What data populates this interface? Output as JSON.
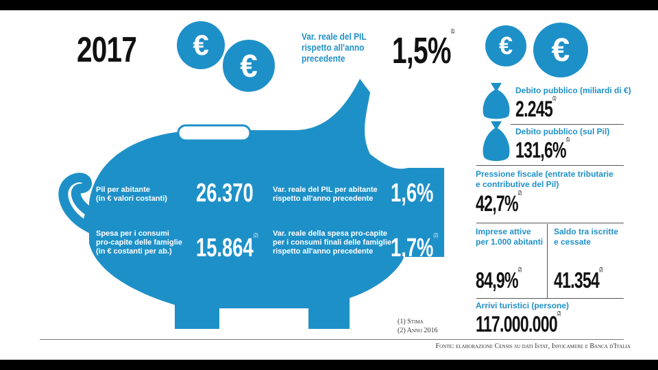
{
  "year": "2017",
  "header": {
    "pil_label": [
      "Var. reale del PIL",
      "rispetto all'anno",
      "precedente"
    ],
    "pil_value": "1,5%",
    "pil_note": "(1)"
  },
  "euro_symbol": "€",
  "pig": {
    "pil_abitante_label": [
      "Pil per abitante",
      "(in € valori costanti)"
    ],
    "pil_abitante_value": "26.370",
    "var_pil_abitante_label": [
      "Var. reale del PIL per abitante",
      "rispetto all'anno precedente"
    ],
    "var_pil_abitante_value": "1,6%",
    "spesa_label": [
      "Spesa per i consumi",
      "pro-capite delle famiglie",
      "(in € costanti per ab.)"
    ],
    "spesa_value": "15.864",
    "spesa_note": "(2)",
    "var_spesa_label": [
      "Var. reale della spesa pro-capite",
      "per i consumi finali delle famiglie",
      "rispetto all'anno precedente"
    ],
    "var_spesa_value": "1,7%",
    "var_spesa_note": "(2)"
  },
  "right": {
    "debito_label": "Debito pubblico (miliardi di €)",
    "debito_value": "2.245",
    "debito_note": "(1)",
    "debito_pil_label": "Debito pubblico (sul Pil)",
    "debito_pil_value": "131,6%",
    "debito_pil_note": "(1)",
    "pressione_label": [
      "Pressione fiscale (entrate tributarie",
      "e contributive del Pil)"
    ],
    "pressione_value": "42,7%",
    "pressione_note": "(2)",
    "imprese_label": [
      "Imprese attive",
      "per 1.000 abitanti"
    ],
    "imprese_value": "84,9%",
    "imprese_note": "(2)",
    "saldo_label": [
      "Saldo tra iscritte",
      "e cessate"
    ],
    "saldo_value": "41.354",
    "saldo_note": "(2)",
    "arrivi_label": "Arrivi turistici (persone)",
    "arrivi_value": "117.000.000",
    "arrivi_note": "(2)"
  },
  "notes": {
    "n1": "(1) Stima",
    "n2": "(2) Anno 2016"
  },
  "source": "Fonte: elaborazione Censis su dati Istat, Infocamere e Banca d'Italia",
  "colors": {
    "accent": "#1e90c8",
    "text": "#111111"
  }
}
